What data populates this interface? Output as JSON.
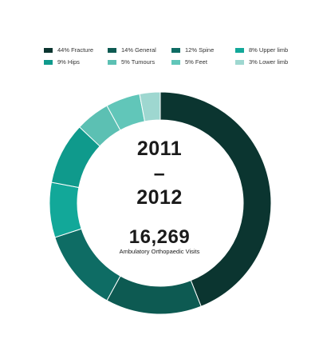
{
  "chart_data": {
    "type": "pie",
    "donut": true,
    "categories": [
      "Fracture",
      "General",
      "Spine",
      "Upper limb",
      "Hips",
      "Tumours",
      "Feet",
      "Lower limb"
    ],
    "values": [
      44,
      14,
      12,
      8,
      9,
      5,
      5,
      3
    ],
    "labels": [
      "44% Fracture",
      "14% General",
      "12% Spine",
      "8% Upper limb",
      "9% Hips",
      "5% Tumours",
      "5% Feet",
      "3% Lower limb"
    ],
    "colors": [
      "#0b3530",
      "#0d5a52",
      "#0e6c64",
      "#12a899",
      "#0f9a8c",
      "#5cc0b3",
      "#61c6b9",
      "#9ed7d0"
    ],
    "legend_position": "top"
  },
  "center": {
    "year_start": "2011",
    "dash": "–",
    "year_end": "2012",
    "total": "16,269",
    "caption": "Ambulatory Orthopaedic Visits"
  }
}
